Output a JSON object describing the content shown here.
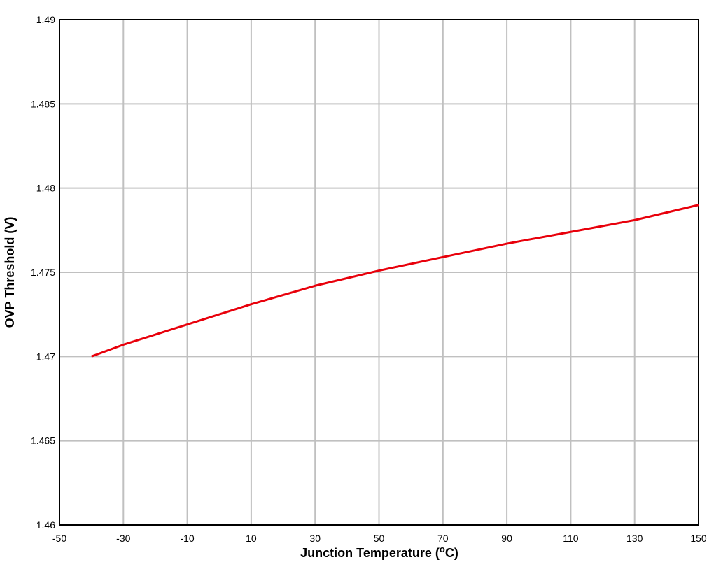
{
  "chart_data": {
    "type": "line",
    "x_label": {
      "text": "Junction Temperature (",
      "superscript": "o",
      "suffix": "C)"
    },
    "y_label": "OVP Threshold (V)",
    "x": [
      -40,
      -30,
      -20,
      -10,
      10,
      30,
      50,
      70,
      90,
      110,
      130,
      150
    ],
    "series": [
      {
        "name": "OVP Threshold",
        "color": "#e8000b",
        "values": [
          1.47,
          1.4707,
          1.4713,
          1.4719,
          1.4731,
          1.4742,
          1.4751,
          1.4759,
          1.4767,
          1.4774,
          1.4781,
          1.479
        ]
      }
    ],
    "xlim": [
      -50,
      150
    ],
    "xticks": [
      -50,
      -30,
      -10,
      10,
      30,
      50,
      70,
      90,
      110,
      130,
      150
    ],
    "ylim": [
      1.46,
      1.49
    ],
    "yticks": [
      1.46,
      1.465,
      1.47,
      1.475,
      1.48,
      1.485,
      1.49
    ],
    "grid": true
  }
}
